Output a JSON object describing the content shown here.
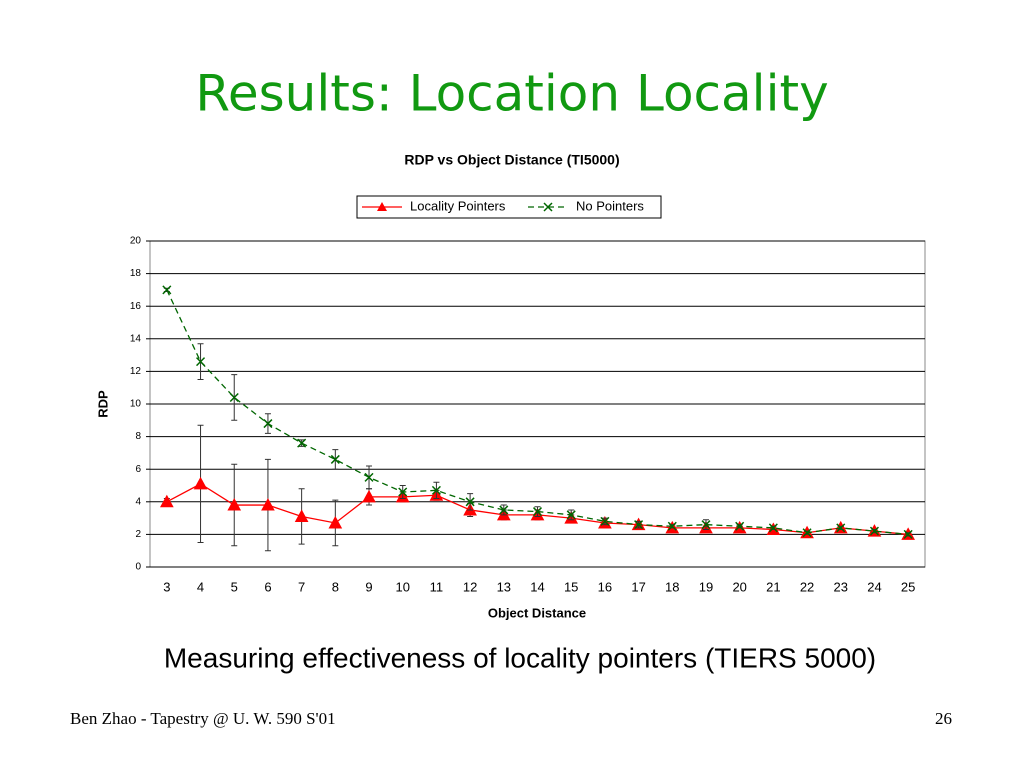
{
  "slide": {
    "title": "Results: Location Locality",
    "caption": "Measuring effectiveness of locality pointers (TIERS 5000)",
    "footer": "Ben Zhao - Tapestry @ U. W. 590 S'01",
    "page_number": "26"
  },
  "chart_data": {
    "type": "line",
    "title": "RDP vs Object Distance (TI5000)",
    "x_label": "Object Distance",
    "y_label": "RDP",
    "categories": [
      3,
      4,
      5,
      6,
      7,
      8,
      9,
      10,
      11,
      12,
      13,
      14,
      15,
      16,
      17,
      18,
      19,
      20,
      21,
      22,
      23,
      24,
      25
    ],
    "series": [
      {
        "name": "Locality Pointers",
        "color": "#ff0000",
        "marker": "triangle",
        "dash": false,
        "values": [
          4.0,
          5.1,
          3.8,
          3.8,
          3.1,
          2.7,
          4.3,
          4.3,
          4.4,
          3.5,
          3.2,
          3.2,
          3.0,
          2.7,
          2.6,
          2.4,
          2.4,
          2.4,
          2.3,
          2.1,
          2.4,
          2.2,
          2.0
        ],
        "errors": [
          0.2,
          3.6,
          2.5,
          2.8,
          1.7,
          1.4,
          0.5,
          0.3,
          0.3,
          0.4,
          0.3,
          0.3,
          0.2,
          0.1,
          0.1,
          0.1,
          0.1,
          0.1,
          0.1,
          0.1,
          0.1,
          0.1,
          0.1
        ]
      },
      {
        "name": "No Pointers",
        "color": "#006600",
        "marker": "x",
        "dash": true,
        "values": [
          17.0,
          12.6,
          10.4,
          8.8,
          7.6,
          6.6,
          5.5,
          4.6,
          4.7,
          4.0,
          3.5,
          3.4,
          3.2,
          2.8,
          2.6,
          2.5,
          2.6,
          2.5,
          2.4,
          2.1,
          2.4,
          2.2,
          2.0
        ],
        "errors": [
          0.1,
          1.1,
          1.4,
          0.6,
          0.2,
          0.6,
          0.7,
          0.4,
          0.5,
          0.5,
          0.3,
          0.3,
          0.3,
          0.2,
          0.2,
          0.1,
          0.3,
          0.1,
          0.1,
          0.1,
          0.1,
          0.1,
          0.1
        ]
      }
    ],
    "ylim": [
      0,
      20
    ],
    "yticks": [
      0,
      2,
      4,
      6,
      8,
      10,
      12,
      14,
      16,
      18,
      20
    ],
    "grid": true,
    "legend_position": "top"
  }
}
